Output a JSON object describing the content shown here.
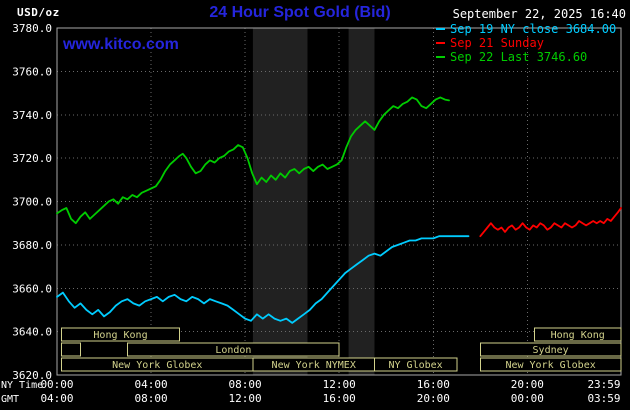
{
  "header": {
    "units": "USD/oz",
    "title": "24 Hour Spot Gold (Bid)",
    "datetime": "September 22, 2025 16:40",
    "watermark": "www.kitco.com"
  },
  "legend": [
    {
      "label": "Sep 19 NY close 3684.00",
      "color": "#00ccff"
    },
    {
      "label": "Sep 21 Sunday",
      "color": "#ff0000"
    },
    {
      "label": "Sep 22 Last 3746.60",
      "color": "#00cc00"
    }
  ],
  "colors": {
    "background": "#000000",
    "title_blue": "#2525dd",
    "grid": "#6a6a6a",
    "border": "#a8a8a8",
    "shaded_band": "#212121",
    "session_box": "#d2d28c",
    "axis_text": "#ffffff"
  },
  "chart_data": {
    "type": "line",
    "title": "24 Hour Spot Gold (Bid)",
    "ylabel": "USD/oz",
    "xlabel_rows": [
      "NY Time",
      "GMT"
    ],
    "ylim": [
      3620,
      3780
    ],
    "xlim": [
      0,
      23.983
    ],
    "grid": true,
    "legend_position": "top-right",
    "y_ticks": [
      3780,
      3760,
      3740,
      3720,
      3700,
      3680,
      3660,
      3640,
      3620
    ],
    "x_ticks": [
      {
        "hour": 0,
        "ny": "00:00",
        "gmt": "04:00"
      },
      {
        "hour": 4,
        "ny": "04:00",
        "gmt": "08:00"
      },
      {
        "hour": 8,
        "ny": "08:00",
        "gmt": "12:00"
      },
      {
        "hour": 12,
        "ny": "12:00",
        "gmt": "16:00"
      },
      {
        "hour": 16,
        "ny": "16:00",
        "gmt": "20:00"
      },
      {
        "hour": 20,
        "ny": "20:00",
        "gmt": "00:00"
      },
      {
        "hour": 23.983,
        "ny": "23:59",
        "gmt": "03:59"
      }
    ],
    "shaded_bands": [
      {
        "start": 8.33,
        "end": 10.65
      },
      {
        "start": 12.4,
        "end": 13.5
      }
    ],
    "sessions": [
      {
        "label": "Hong Kong",
        "row": 0,
        "start": 0.2,
        "end": 5.2
      },
      {
        "label": "Hong Kong",
        "row": 0,
        "start": 20.3,
        "end": 23.983
      },
      {
        "label": "",
        "row": 1,
        "start": 0.2,
        "end": 1.0
      },
      {
        "label": "London",
        "row": 1,
        "start": 3.0,
        "end": 12.0
      },
      {
        "label": "Sydney",
        "row": 1,
        "start": 18.0,
        "end": 23.983
      },
      {
        "label": "New York Globex",
        "row": 2,
        "start": 0.2,
        "end": 8.33
      },
      {
        "label": "New York NYMEX",
        "row": 2,
        "start": 8.33,
        "end": 13.5
      },
      {
        "label": "NY Globex",
        "row": 2,
        "start": 13.5,
        "end": 17.0
      },
      {
        "label": "New York Globex",
        "row": 2,
        "start": 18.0,
        "end": 23.983
      }
    ],
    "series": [
      {
        "name": "Sep 19 NY close",
        "close": 3684.0,
        "color": "#00ccff",
        "points": [
          [
            0.0,
            3656
          ],
          [
            0.25,
            3658
          ],
          [
            0.5,
            3654
          ],
          [
            0.75,
            3651
          ],
          [
            1.0,
            3653
          ],
          [
            1.25,
            3650
          ],
          [
            1.5,
            3648
          ],
          [
            1.75,
            3650
          ],
          [
            2.0,
            3647
          ],
          [
            2.25,
            3649
          ],
          [
            2.5,
            3652
          ],
          [
            2.75,
            3654
          ],
          [
            3.0,
            3655
          ],
          [
            3.25,
            3653
          ],
          [
            3.5,
            3652
          ],
          [
            3.75,
            3654
          ],
          [
            4.0,
            3655
          ],
          [
            4.25,
            3656
          ],
          [
            4.5,
            3654
          ],
          [
            4.75,
            3656
          ],
          [
            5.0,
            3657
          ],
          [
            5.25,
            3655
          ],
          [
            5.5,
            3654
          ],
          [
            5.75,
            3656
          ],
          [
            6.0,
            3655
          ],
          [
            6.25,
            3653
          ],
          [
            6.5,
            3655
          ],
          [
            6.75,
            3654
          ],
          [
            7.0,
            3653
          ],
          [
            7.25,
            3652
          ],
          [
            7.5,
            3650
          ],
          [
            7.75,
            3648
          ],
          [
            8.0,
            3646
          ],
          [
            8.25,
            3645
          ],
          [
            8.5,
            3648
          ],
          [
            8.75,
            3646
          ],
          [
            9.0,
            3648
          ],
          [
            9.25,
            3646
          ],
          [
            9.5,
            3645
          ],
          [
            9.75,
            3646
          ],
          [
            10.0,
            3644
          ],
          [
            10.25,
            3646
          ],
          [
            10.5,
            3648
          ],
          [
            10.75,
            3650
          ],
          [
            11.0,
            3653
          ],
          [
            11.25,
            3655
          ],
          [
            11.5,
            3658
          ],
          [
            11.75,
            3661
          ],
          [
            12.0,
            3664
          ],
          [
            12.25,
            3667
          ],
          [
            12.5,
            3669
          ],
          [
            12.75,
            3671
          ],
          [
            13.0,
            3673
          ],
          [
            13.25,
            3675
          ],
          [
            13.5,
            3676
          ],
          [
            13.75,
            3675
          ],
          [
            14.0,
            3677
          ],
          [
            14.25,
            3679
          ],
          [
            14.5,
            3680
          ],
          [
            14.75,
            3681
          ],
          [
            15.0,
            3682
          ],
          [
            15.25,
            3682
          ],
          [
            15.5,
            3683
          ],
          [
            15.75,
            3683
          ],
          [
            16.0,
            3683
          ],
          [
            16.25,
            3684
          ],
          [
            16.5,
            3684
          ],
          [
            17.0,
            3684
          ],
          [
            17.5,
            3684
          ]
        ]
      },
      {
        "name": "Sep 21 Sunday",
        "color": "#ff0000",
        "points": [
          [
            18.0,
            3684
          ],
          [
            18.15,
            3686
          ],
          [
            18.3,
            3688
          ],
          [
            18.45,
            3690
          ],
          [
            18.6,
            3688
          ],
          [
            18.75,
            3687
          ],
          [
            18.9,
            3688
          ],
          [
            19.05,
            3686
          ],
          [
            19.2,
            3688
          ],
          [
            19.35,
            3689
          ],
          [
            19.5,
            3687
          ],
          [
            19.65,
            3688
          ],
          [
            19.8,
            3690
          ],
          [
            19.95,
            3688
          ],
          [
            20.1,
            3687
          ],
          [
            20.25,
            3689
          ],
          [
            20.4,
            3688
          ],
          [
            20.55,
            3690
          ],
          [
            20.7,
            3689
          ],
          [
            20.85,
            3687
          ],
          [
            21.0,
            3688
          ],
          [
            21.15,
            3690
          ],
          [
            21.3,
            3689
          ],
          [
            21.45,
            3688
          ],
          [
            21.6,
            3690
          ],
          [
            21.75,
            3689
          ],
          [
            21.9,
            3688
          ],
          [
            22.05,
            3689
          ],
          [
            22.2,
            3691
          ],
          [
            22.35,
            3690
          ],
          [
            22.5,
            3689
          ],
          [
            22.65,
            3690
          ],
          [
            22.8,
            3691
          ],
          [
            22.95,
            3690
          ],
          [
            23.1,
            3691
          ],
          [
            23.25,
            3690
          ],
          [
            23.4,
            3692
          ],
          [
            23.55,
            3691
          ],
          [
            23.7,
            3693
          ],
          [
            23.85,
            3695
          ],
          [
            23.983,
            3697
          ]
        ]
      },
      {
        "name": "Sep 22",
        "last": 3746.6,
        "color": "#00cc00",
        "points": [
          [
            0.0,
            3694.5
          ],
          [
            0.2,
            3696
          ],
          [
            0.4,
            3697
          ],
          [
            0.6,
            3692
          ],
          [
            0.8,
            3690
          ],
          [
            1.0,
            3693
          ],
          [
            1.2,
            3695
          ],
          [
            1.4,
            3692
          ],
          [
            1.6,
            3694
          ],
          [
            1.8,
            3696
          ],
          [
            2.0,
            3698
          ],
          [
            2.2,
            3700
          ],
          [
            2.4,
            3701
          ],
          [
            2.6,
            3699
          ],
          [
            2.8,
            3702
          ],
          [
            3.0,
            3701
          ],
          [
            3.2,
            3703
          ],
          [
            3.4,
            3702
          ],
          [
            3.6,
            3704
          ],
          [
            3.8,
            3705
          ],
          [
            4.0,
            3706
          ],
          [
            4.2,
            3707
          ],
          [
            4.4,
            3710
          ],
          [
            4.6,
            3714
          ],
          [
            4.8,
            3717
          ],
          [
            5.0,
            3719
          ],
          [
            5.2,
            3721
          ],
          [
            5.35,
            3722
          ],
          [
            5.5,
            3720
          ],
          [
            5.7,
            3716
          ],
          [
            5.9,
            3713
          ],
          [
            6.1,
            3714
          ],
          [
            6.3,
            3717
          ],
          [
            6.5,
            3719
          ],
          [
            6.7,
            3718
          ],
          [
            6.9,
            3720
          ],
          [
            7.1,
            3721
          ],
          [
            7.3,
            3723
          ],
          [
            7.5,
            3724
          ],
          [
            7.7,
            3726
          ],
          [
            7.9,
            3725
          ],
          [
            8.1,
            3720
          ],
          [
            8.3,
            3713
          ],
          [
            8.5,
            3708
          ],
          [
            8.7,
            3711
          ],
          [
            8.9,
            3709
          ],
          [
            9.1,
            3712
          ],
          [
            9.3,
            3710
          ],
          [
            9.5,
            3713
          ],
          [
            9.7,
            3711
          ],
          [
            9.9,
            3714
          ],
          [
            10.1,
            3715
          ],
          [
            10.3,
            3713
          ],
          [
            10.5,
            3715
          ],
          [
            10.7,
            3716
          ],
          [
            10.9,
            3714
          ],
          [
            11.1,
            3716
          ],
          [
            11.3,
            3717
          ],
          [
            11.5,
            3715
          ],
          [
            11.7,
            3716
          ],
          [
            11.9,
            3717
          ],
          [
            12.1,
            3719
          ],
          [
            12.3,
            3725
          ],
          [
            12.5,
            3730
          ],
          [
            12.7,
            3733
          ],
          [
            12.9,
            3735
          ],
          [
            13.1,
            3737
          ],
          [
            13.3,
            3735
          ],
          [
            13.5,
            3733
          ],
          [
            13.7,
            3737
          ],
          [
            13.9,
            3740
          ],
          [
            14.1,
            3742
          ],
          [
            14.3,
            3744
          ],
          [
            14.5,
            3743
          ],
          [
            14.7,
            3745
          ],
          [
            14.9,
            3746
          ],
          [
            15.1,
            3748
          ],
          [
            15.3,
            3747
          ],
          [
            15.5,
            3744
          ],
          [
            15.7,
            3743
          ],
          [
            15.9,
            3745
          ],
          [
            16.1,
            3747
          ],
          [
            16.3,
            3748
          ],
          [
            16.5,
            3747
          ],
          [
            16.67,
            3746.6
          ]
        ]
      }
    ]
  }
}
